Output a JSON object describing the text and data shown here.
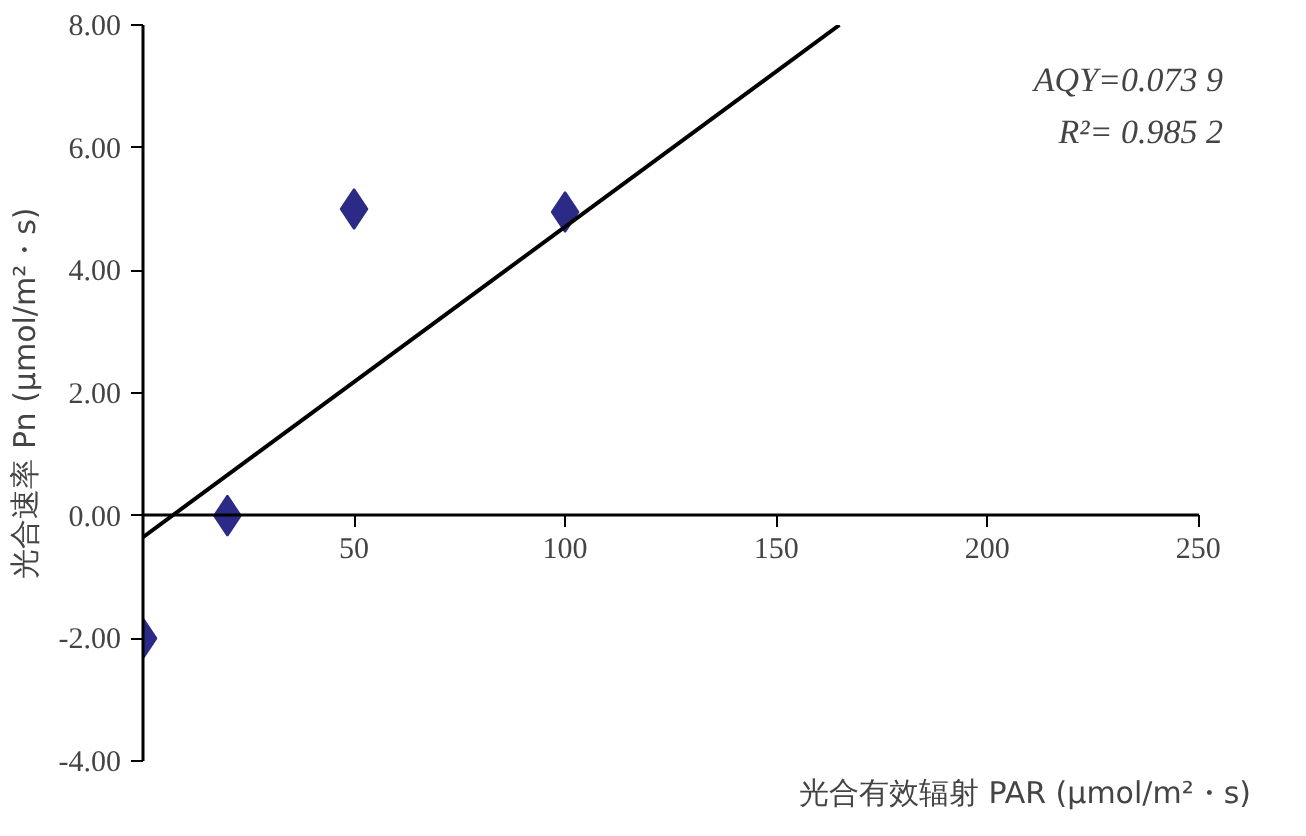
{
  "chart_data": {
    "type": "scatter",
    "xlabel": "光合有效辐射 PAR (μmol/m²・s)",
    "ylabel": "光合速率 Pn (μmol/m²・s)",
    "x": [
      0,
      20,
      50,
      100
    ],
    "series": [
      {
        "color": "#2b2a87",
        "marker": "diamond",
        "values": [
          -2,
          0,
          5,
          4.95
        ]
      },
      {
        "type": "line",
        "color": "#000000",
        "x": [
          0,
          165
        ],
        "values": [
          -0.35,
          8
        ]
      }
    ],
    "xlim": [
      0,
      250
    ],
    "xticks": [
      50,
      100,
      150,
      200,
      250
    ],
    "ylim": [
      -4,
      8
    ],
    "yticks": [
      {
        "value": -4,
        "label": "-4.00"
      },
      {
        "value": -2,
        "label": "-2.00"
      },
      {
        "value": 0,
        "label": "0.00"
      },
      {
        "value": 2,
        "label": "2.00"
      },
      {
        "value": 4,
        "label": "4.00"
      },
      {
        "value": 6,
        "label": "6.00"
      },
      {
        "value": 8,
        "label": "8.00"
      }
    ],
    "annotations": [
      "AQY=0.073 9",
      "R²= 0.985 2"
    ],
    "grid": false
  }
}
